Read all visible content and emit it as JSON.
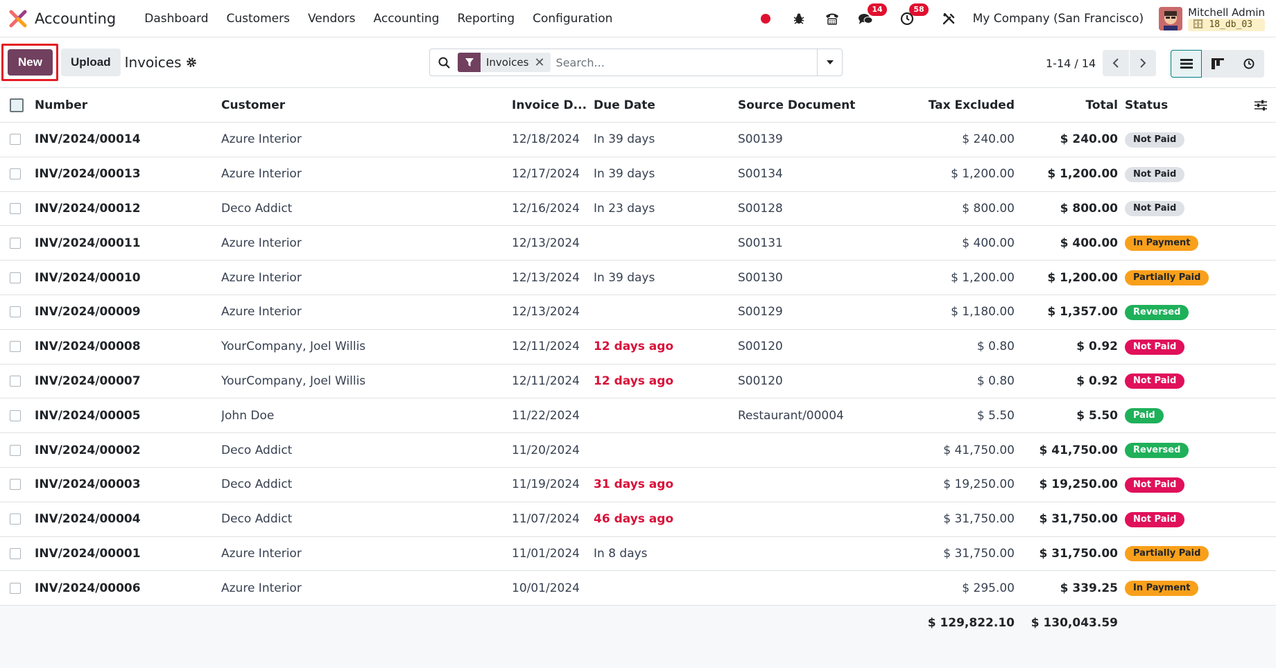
{
  "nav": {
    "app_name": "Accounting",
    "menu": [
      "Dashboard",
      "Customers",
      "Vendors",
      "Accounting",
      "Reporting",
      "Configuration"
    ],
    "chat_count": "14",
    "activity_count": "58",
    "company": "My Company (San Francisco)",
    "user_name": "Mitchell Admin",
    "db_name": "18_db_03"
  },
  "control": {
    "new_label": "New",
    "upload_label": "Upload",
    "title": "Invoices",
    "facet_label": "Invoices",
    "search_placeholder": "Search...",
    "pager_value": "1-14 / 14"
  },
  "columns": {
    "number": "Number",
    "customer": "Customer",
    "invoice_date": "Invoice D...",
    "due_date": "Due Date",
    "source": "Source Document",
    "tax_excluded": "Tax Excluded",
    "total": "Total",
    "status": "Status"
  },
  "rows": [
    {
      "number": "INV/2024/00014",
      "customer": "Azure Interior",
      "invoice_date": "12/18/2024",
      "due": "In 39 days",
      "overdue": false,
      "source": "S00139",
      "tax_excluded": "$ 240.00",
      "total": "$ 240.00",
      "status": "Not Paid",
      "status_kind": "gray"
    },
    {
      "number": "INV/2024/00013",
      "customer": "Azure Interior",
      "invoice_date": "12/17/2024",
      "due": "In 39 days",
      "overdue": false,
      "source": "S00134",
      "tax_excluded": "$ 1,200.00",
      "total": "$ 1,200.00",
      "status": "Not Paid",
      "status_kind": "gray"
    },
    {
      "number": "INV/2024/00012",
      "customer": "Deco Addict",
      "invoice_date": "12/16/2024",
      "due": "In 23 days",
      "overdue": false,
      "source": "S00128",
      "tax_excluded": "$ 800.00",
      "total": "$ 800.00",
      "status": "Not Paid",
      "status_kind": "gray"
    },
    {
      "number": "INV/2024/00011",
      "customer": "Azure Interior",
      "invoice_date": "12/13/2024",
      "due": "",
      "overdue": false,
      "source": "S00131",
      "tax_excluded": "$ 400.00",
      "total": "$ 400.00",
      "status": "In Payment",
      "status_kind": "orange"
    },
    {
      "number": "INV/2024/00010",
      "customer": "Azure Interior",
      "invoice_date": "12/13/2024",
      "due": "In 39 days",
      "overdue": false,
      "source": "S00130",
      "tax_excluded": "$ 1,200.00",
      "total": "$ 1,200.00",
      "status": "Partially Paid",
      "status_kind": "orange"
    },
    {
      "number": "INV/2024/00009",
      "customer": "Azure Interior",
      "invoice_date": "12/13/2024",
      "due": "",
      "overdue": false,
      "source": "S00129",
      "tax_excluded": "$ 1,180.00",
      "total": "$ 1,357.00",
      "status": "Reversed",
      "status_kind": "green"
    },
    {
      "number": "INV/2024/00008",
      "customer": "YourCompany, Joel Willis",
      "invoice_date": "12/11/2024",
      "due": "12 days ago",
      "overdue": true,
      "source": "S00120",
      "tax_excluded": "$ 0.80",
      "total": "$ 0.92",
      "status": "Not Paid",
      "status_kind": "red"
    },
    {
      "number": "INV/2024/00007",
      "customer": "YourCompany, Joel Willis",
      "invoice_date": "12/11/2024",
      "due": "12 days ago",
      "overdue": true,
      "source": "S00120",
      "tax_excluded": "$ 0.80",
      "total": "$ 0.92",
      "status": "Not Paid",
      "status_kind": "red"
    },
    {
      "number": "INV/2024/00005",
      "customer": "John Doe",
      "invoice_date": "11/22/2024",
      "due": "",
      "overdue": false,
      "source": "Restaurant/00004",
      "tax_excluded": "$ 5.50",
      "total": "$ 5.50",
      "status": "Paid",
      "status_kind": "green"
    },
    {
      "number": "INV/2024/00002",
      "customer": "Deco Addict",
      "invoice_date": "11/20/2024",
      "due": "",
      "overdue": false,
      "source": "",
      "tax_excluded": "$ 41,750.00",
      "total": "$ 41,750.00",
      "status": "Reversed",
      "status_kind": "green"
    },
    {
      "number": "INV/2024/00003",
      "customer": "Deco Addict",
      "invoice_date": "11/19/2024",
      "due": "31 days ago",
      "overdue": true,
      "source": "",
      "tax_excluded": "$ 19,250.00",
      "total": "$ 19,250.00",
      "status": "Not Paid",
      "status_kind": "red"
    },
    {
      "number": "INV/2024/00004",
      "customer": "Deco Addict",
      "invoice_date": "11/07/2024",
      "due": "46 days ago",
      "overdue": true,
      "source": "",
      "tax_excluded": "$ 31,750.00",
      "total": "$ 31,750.00",
      "status": "Not Paid",
      "status_kind": "red"
    },
    {
      "number": "INV/2024/00001",
      "customer": "Azure Interior",
      "invoice_date": "11/01/2024",
      "due": "In 8 days",
      "overdue": false,
      "source": "",
      "tax_excluded": "$ 31,750.00",
      "total": "$ 31,750.00",
      "status": "Partially Paid",
      "status_kind": "orange"
    },
    {
      "number": "INV/2024/00006",
      "customer": "Azure Interior",
      "invoice_date": "10/01/2024",
      "due": "",
      "overdue": false,
      "source": "",
      "tax_excluded": "$ 295.00",
      "total": "$ 339.25",
      "status": "In Payment",
      "status_kind": "orange"
    }
  ],
  "totals": {
    "tax_excluded": "$ 129,822.10",
    "total": "$ 130,043.59"
  },
  "colors": {
    "brand": "#71405f",
    "accent": "#017e84",
    "danger": "#d9113a",
    "highlight_box": "#e31b23"
  }
}
